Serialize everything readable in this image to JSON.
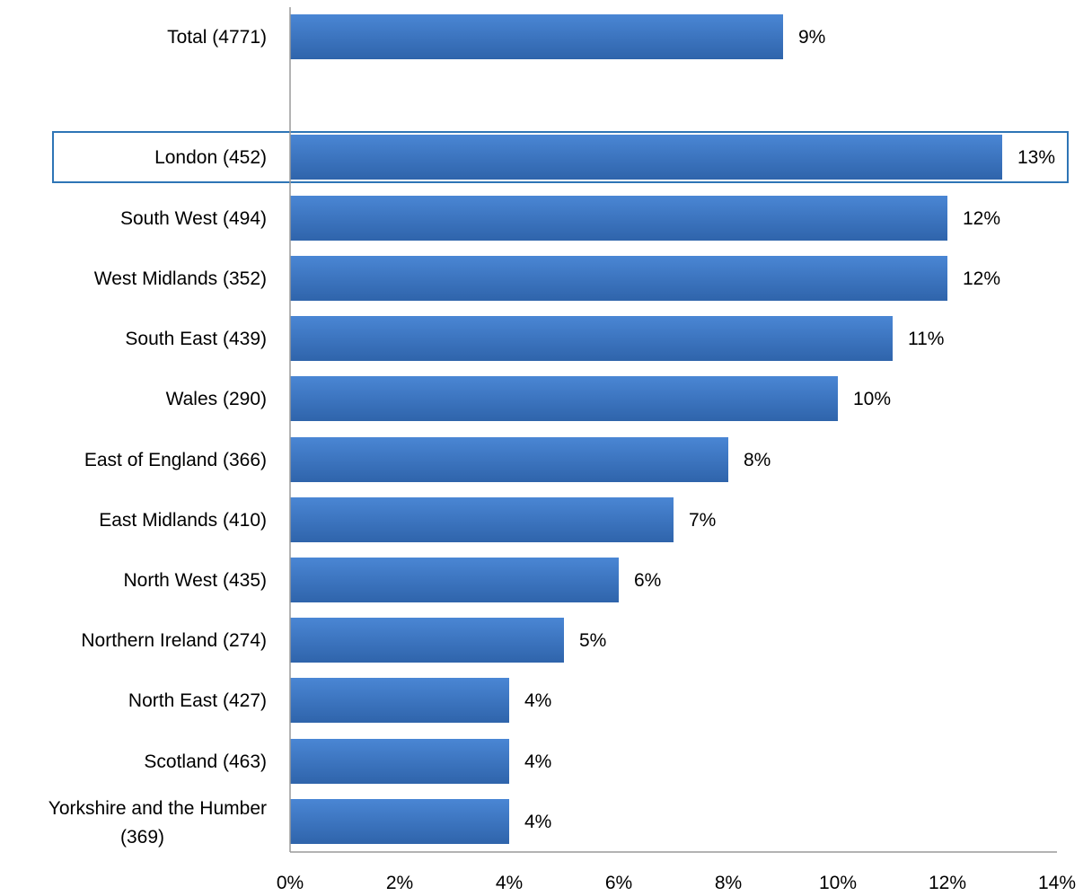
{
  "chart_data": {
    "type": "bar",
    "orientation": "horizontal",
    "categories": [
      "Total (4771)",
      "London (452)",
      "South West (494)",
      "West Midlands (352)",
      "South East (439)",
      "Wales (290)",
      "East of England (366)",
      "East Midlands (410)",
      "North West (435)",
      "Northern Ireland (274)",
      "North East (427)",
      "Scotland (463)",
      "Yorkshire and the Humber (369)"
    ],
    "values": [
      9,
      13,
      12,
      12,
      11,
      10,
      8,
      7,
      6,
      5,
      4,
      4,
      4
    ],
    "value_labels": [
      "9%",
      "13%",
      "12%",
      "12%",
      "11%",
      "10%",
      "8%",
      "7%",
      "6%",
      "5%",
      "4%",
      "4%",
      "4%"
    ],
    "highlighted_category": "London (452)",
    "xlim": [
      0,
      14
    ],
    "xticks": [
      "0%",
      "2%",
      "4%",
      "6%",
      "8%",
      "10%",
      "12%",
      "14%"
    ],
    "grid": false,
    "title": "",
    "xlabel": "",
    "ylabel": ""
  },
  "colors": {
    "bar_light": "#4a86d4",
    "bar_dark": "#2f64ab",
    "highlight_border": "#2e75b6",
    "axis": "#9a9a9a"
  }
}
